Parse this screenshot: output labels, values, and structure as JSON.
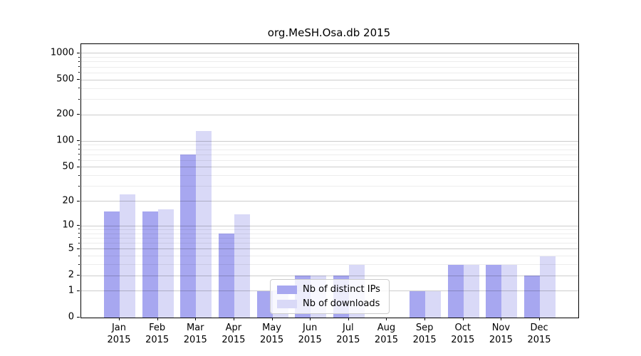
{
  "chart_data": {
    "type": "bar",
    "title": "org.MeSH.Osa.db 2015",
    "categories": [
      "Jan",
      "Feb",
      "Mar",
      "Apr",
      "May",
      "Jun",
      "Jul",
      "Aug",
      "Sep",
      "Oct",
      "Nov",
      "Dec"
    ],
    "x_year_label": "2015",
    "series": [
      {
        "name": "Nb of distinct IPs",
        "color": "#a7a7f0",
        "values": [
          15,
          15,
          70,
          8,
          1,
          2,
          2,
          0,
          1,
          3,
          3,
          2
        ]
      },
      {
        "name": "Nb of downloads",
        "color": "#d9d9f7",
        "values": [
          24,
          16,
          130,
          14,
          1,
          2,
          3,
          0,
          1,
          3,
          3,
          4
        ]
      }
    ],
    "y_ticks": [
      0,
      1,
      2,
      5,
      10,
      20,
      50,
      100,
      200,
      500,
      1000
    ],
    "y_minor_ticks": [
      3,
      4,
      6,
      7,
      8,
      9,
      30,
      40,
      60,
      70,
      80,
      90,
      300,
      400,
      600,
      700,
      800,
      900
    ],
    "y_scale": "log10(value+1)",
    "ylim": [
      0,
      1240
    ],
    "grid": true,
    "legend_position": "lower center"
  },
  "colors": {
    "bar_dark": "#a7a7f0",
    "bar_light": "#d9d9f7",
    "grid_major": "#c9c9c9",
    "grid_minor": "#ececec",
    "axis": "#000000",
    "legend_border": "#cccccc"
  }
}
